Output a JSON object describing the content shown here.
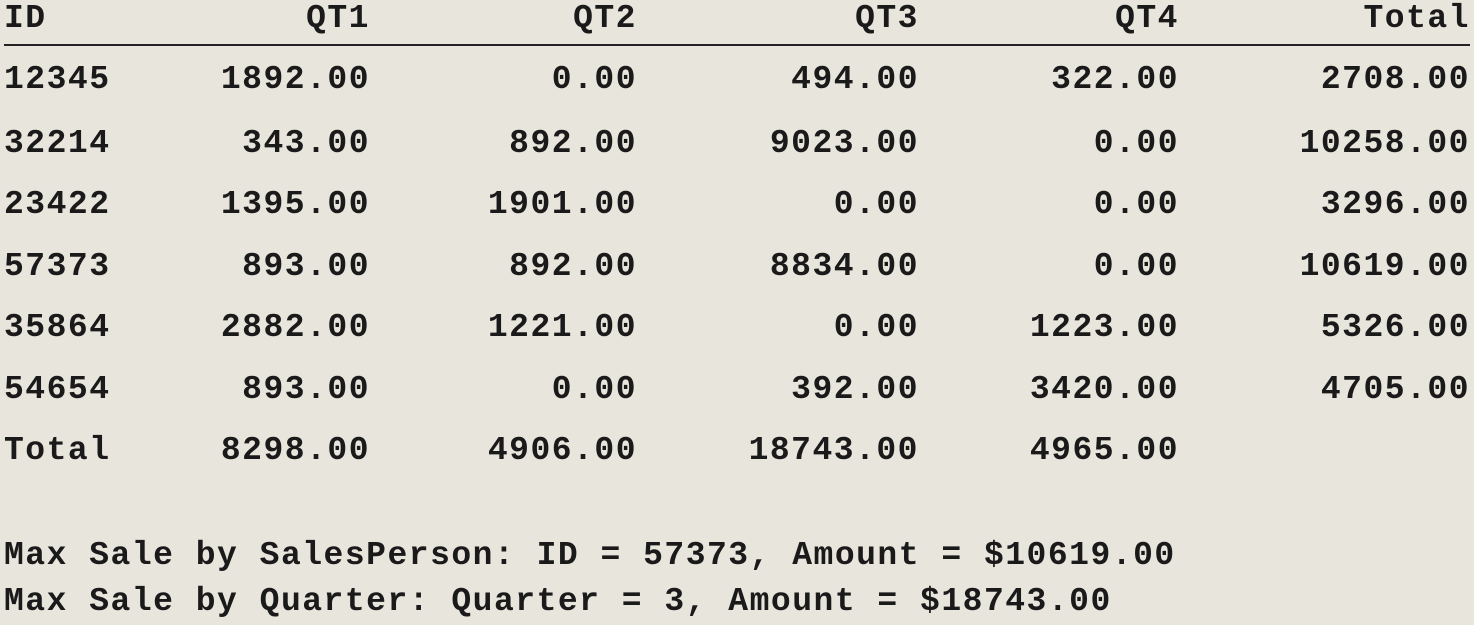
{
  "table": {
    "headers": [
      "ID",
      "QT1",
      "QT2",
      "QT3",
      "QT4",
      "Total"
    ],
    "rows": [
      [
        "12345",
        "1892.00",
        "0.00",
        "494.00",
        "322.00",
        "2708.00"
      ],
      [
        "32214",
        "343.00",
        "892.00",
        "9023.00",
        "0.00",
        "10258.00"
      ],
      [
        "23422",
        "1395.00",
        "1901.00",
        "0.00",
        "0.00",
        "3296.00"
      ],
      [
        "57373",
        "893.00",
        "892.00",
        "8834.00",
        "0.00",
        "10619.00"
      ],
      [
        "35864",
        "2882.00",
        "1221.00",
        "0.00",
        "1223.00",
        "5326.00"
      ],
      [
        "54654",
        "893.00",
        "0.00",
        "392.00",
        "3420.00",
        "4705.00"
      ],
      [
        "Total",
        "8298.00",
        "4906.00",
        "18743.00",
        "4965.00",
        ""
      ]
    ]
  },
  "summary": {
    "salesperson_line": "Max Sale by SalesPerson: ID = 57373, Amount = $10619.00",
    "quarter_line": "Max Sale by Quarter: Quarter = 3, Amount = $18743.00"
  },
  "colors": {
    "background": "#e8e5dc",
    "text": "#1a1a1a"
  }
}
